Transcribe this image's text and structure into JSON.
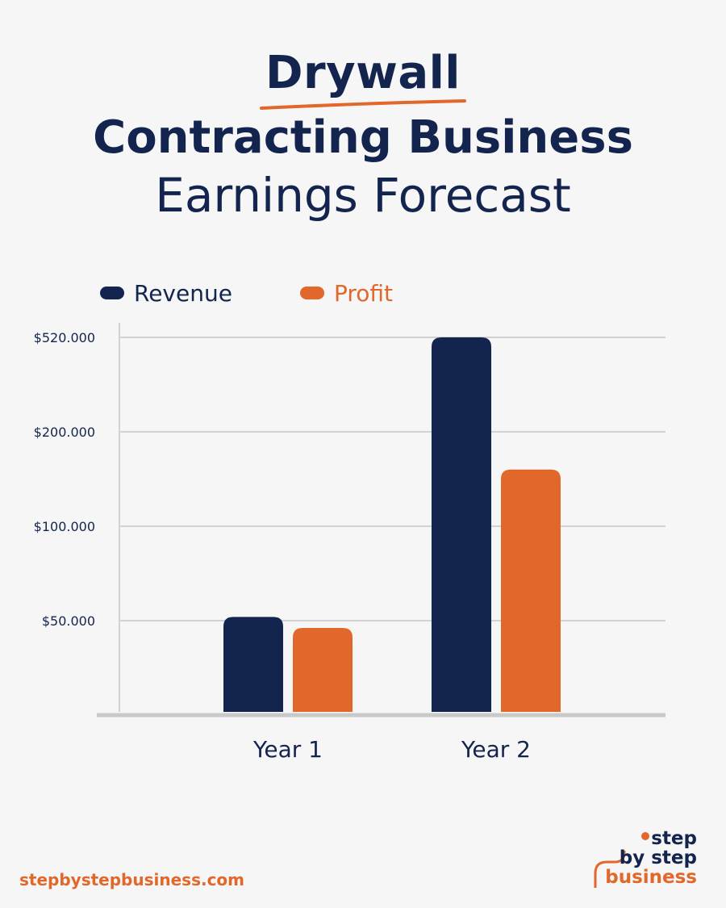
{
  "header": {
    "line1": "Drywall",
    "line2": "Contracting Business",
    "line3": "Earnings Forecast"
  },
  "colors": {
    "navy": "#13254f",
    "orange": "#e2672a",
    "grid": "#d2d2d2",
    "axis": "#c9c9c9",
    "background": "#f6f6f6"
  },
  "chart_data": {
    "type": "bar",
    "categories": [
      "Year 1",
      "Year 2"
    ],
    "series": [
      {
        "name": "Revenue",
        "color": "#13254f",
        "values": [
          52000,
          520000
        ]
      },
      {
        "name": "Profit",
        "color": "#e2672a",
        "values": [
          46000,
          160000
        ]
      }
    ],
    "y_ticks": [
      {
        "value": 50000,
        "label": "$50.000"
      },
      {
        "value": 100000,
        "label": "$100.000"
      },
      {
        "value": 200000,
        "label": "$200.000"
      },
      {
        "value": 520000,
        "label": "$520.000"
      }
    ],
    "grid": true,
    "legend": "top-left"
  },
  "footer": {
    "url": "stepbystepbusiness.com",
    "logo_line1": "step",
    "logo_line2": "by step",
    "logo_line3": "business"
  }
}
